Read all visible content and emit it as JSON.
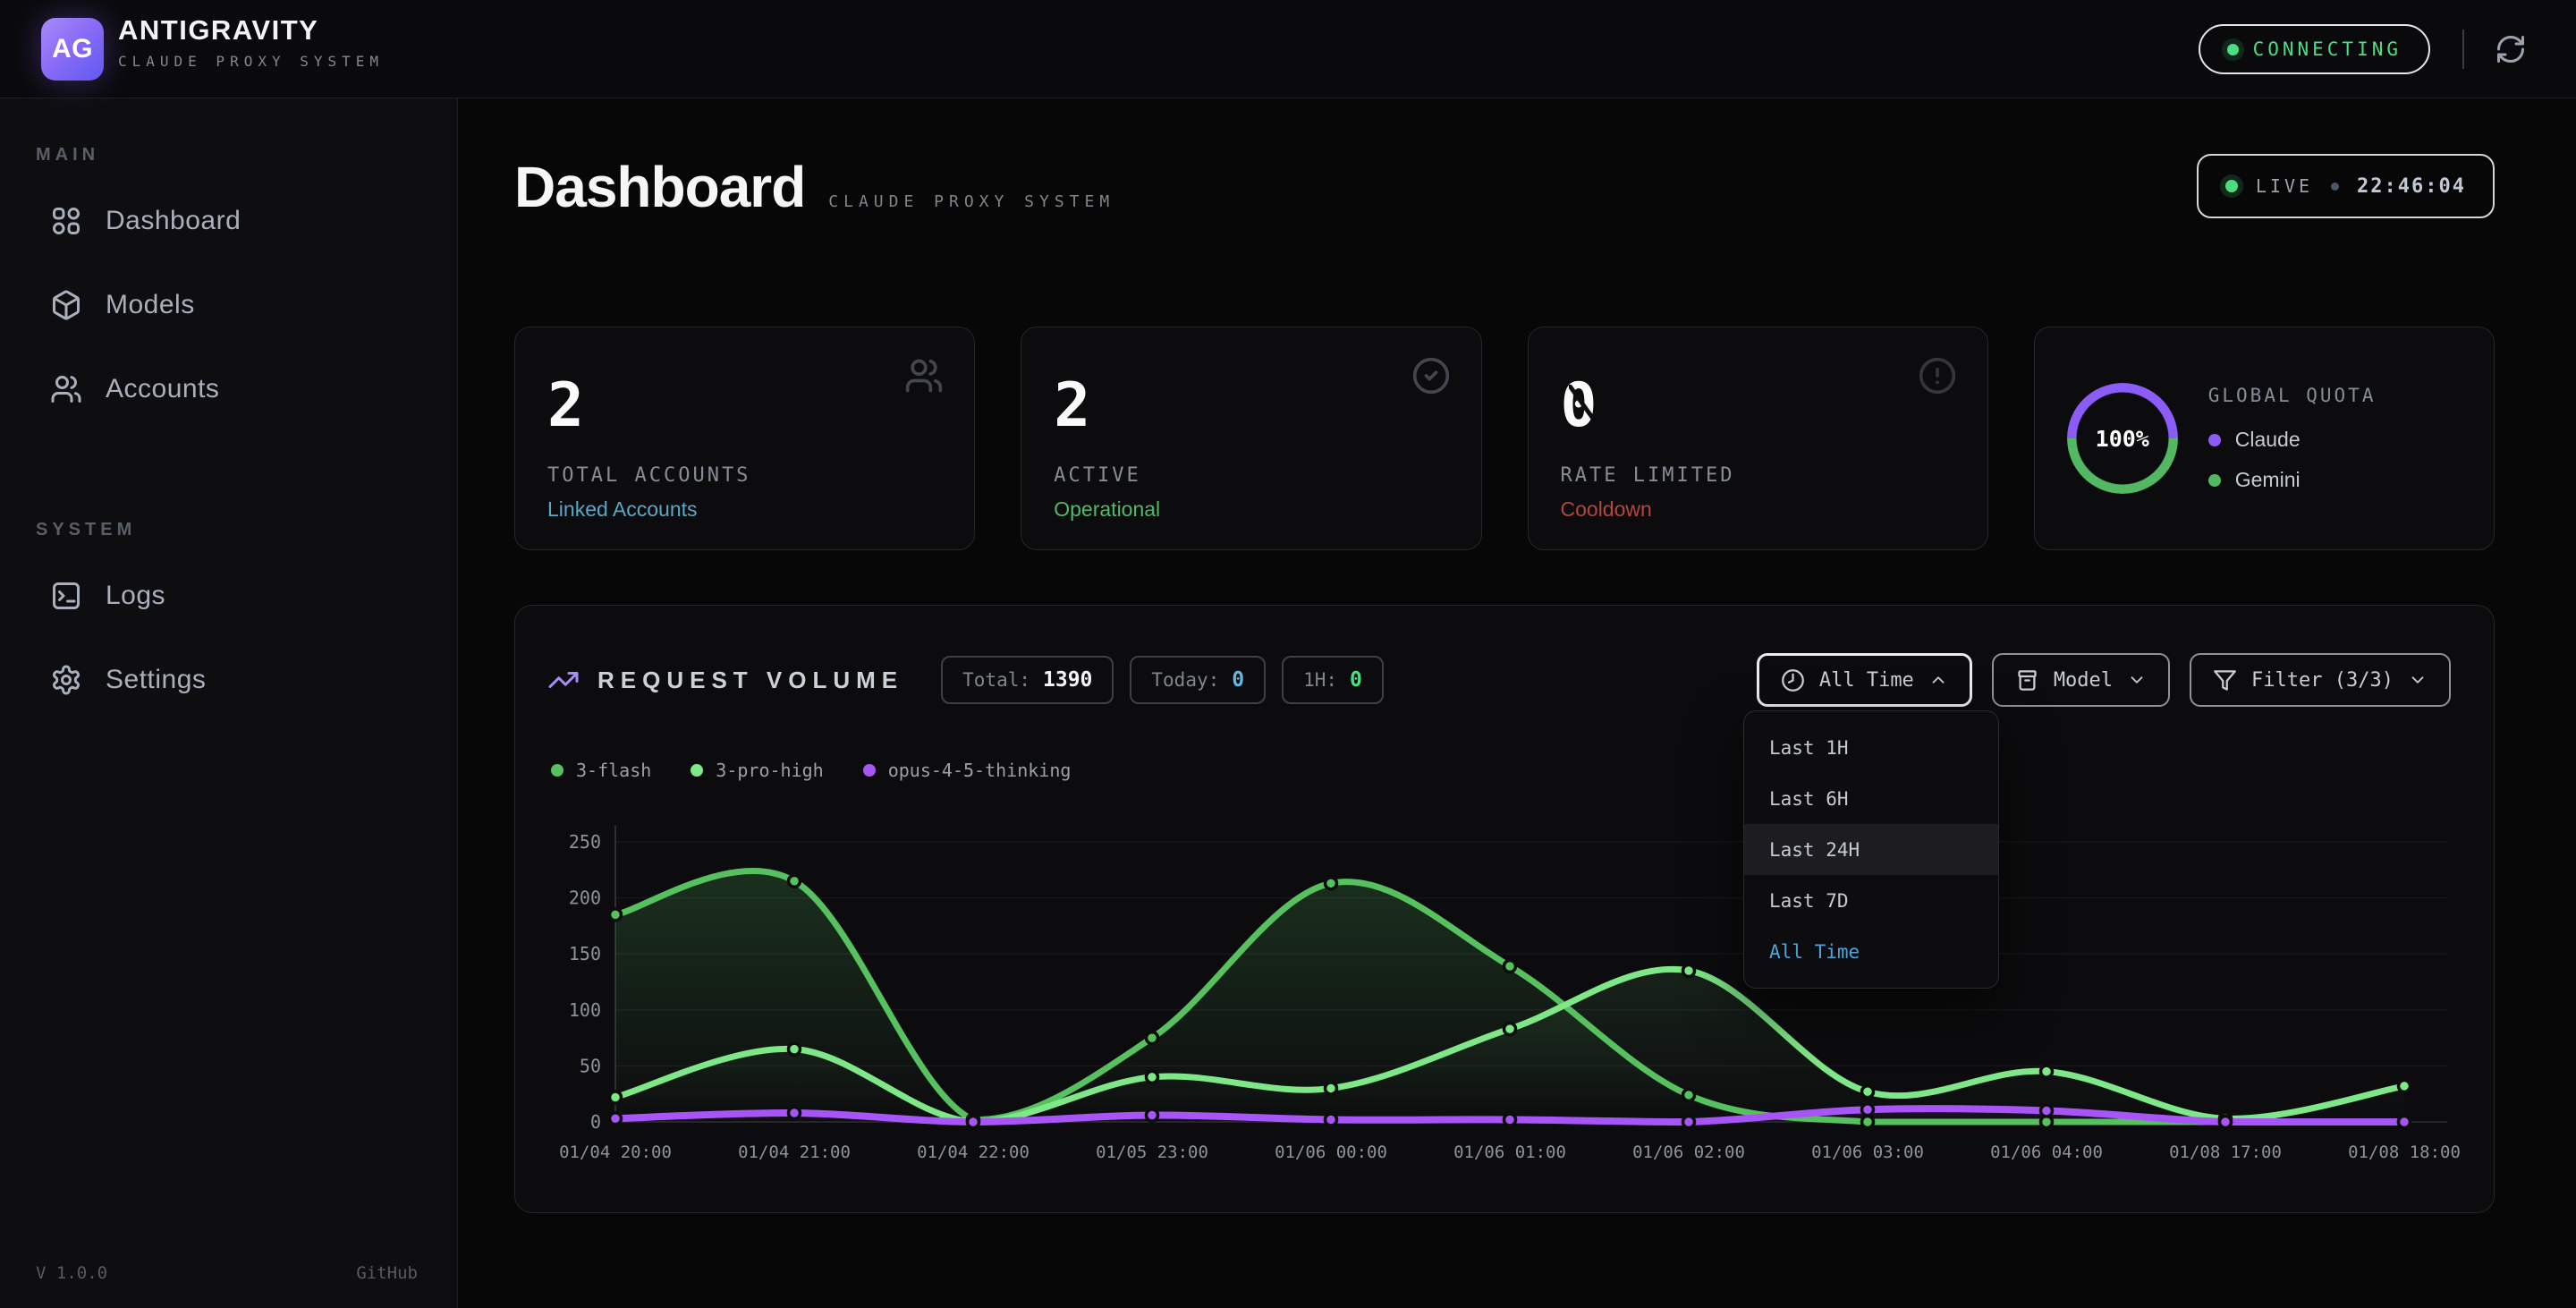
{
  "topbar": {
    "logo_text": "AG",
    "title": "ANTIGRAVITY",
    "subtitle": "CLAUDE PROXY SYSTEM",
    "status": "CONNECTING",
    "status_color": "#4ade80"
  },
  "sidebar": {
    "sections": [
      {
        "label": "MAIN",
        "items": [
          {
            "label": "Dashboard",
            "icon": "grid-icon"
          },
          {
            "label": "Models",
            "icon": "cube-icon"
          },
          {
            "label": "Accounts",
            "icon": "users-icon"
          }
        ]
      },
      {
        "label": "SYSTEM",
        "items": [
          {
            "label": "Logs",
            "icon": "terminal-icon"
          },
          {
            "label": "Settings",
            "icon": "gear-icon"
          }
        ]
      }
    ],
    "footer": {
      "version": "V 1.0.0",
      "link": "GitHub"
    }
  },
  "header": {
    "title": "Dashboard",
    "subtitle": "CLAUDE PROXY SYSTEM",
    "live_label": "LIVE",
    "clock": "22:46:04"
  },
  "stats": [
    {
      "value": "2",
      "label": "TOTAL ACCOUNTS",
      "sub": "Linked Accounts",
      "sub_color": "#5aa8c7",
      "icon": "users-icon"
    },
    {
      "value": "2",
      "label": "ACTIVE",
      "sub": "Operational",
      "sub_color": "#53b868",
      "icon": "check-circle-icon"
    },
    {
      "value": "0",
      "label": "RATE LIMITED",
      "sub": "Cooldown",
      "sub_color": "#b5453f",
      "icon": "alert-circle-icon"
    }
  ],
  "quota": {
    "label": "GLOBAL QUOTA",
    "percent": "100%",
    "ring_top_color": "#8b5cf6",
    "ring_bottom_color": "#53b862",
    "legend": [
      {
        "name": "Claude",
        "color": "#8b5cf6"
      },
      {
        "name": "Gemini",
        "color": "#53b862"
      }
    ]
  },
  "volume": {
    "title": "REQUEST VOLUME",
    "chips": [
      {
        "label": "Total:",
        "value": "1390",
        "value_color": "#f5f5f7"
      },
      {
        "label": "Today:",
        "value": "0",
        "value_color": "#67b7dd"
      },
      {
        "label": "1H:",
        "value": "0",
        "value_color": "#4ade80"
      }
    ],
    "time_button": "All Time",
    "model_button": "Model",
    "filter_button": "Filter (3/3)",
    "menu": {
      "items": [
        "Last 1H",
        "Last 6H",
        "Last 24H",
        "Last 7D",
        "All Time"
      ],
      "highlighted": "Last 24H",
      "selected": "All Time",
      "selected_color": "#4ba5d9"
    }
  },
  "chart_data": {
    "type": "line",
    "title": "REQUEST VOLUME",
    "x": [
      "01/04 20:00",
      "01/04 21:00",
      "01/04 22:00",
      "01/05 23:00",
      "01/06 00:00",
      "01/06 01:00",
      "01/06 02:00",
      "01/06 03:00",
      "01/06 04:00",
      "01/08 17:00",
      "01/08 18:00"
    ],
    "series": [
      {
        "name": "3-flash",
        "color": "#56c15e",
        "fill_from": "rgba(86,193,94,0.20)",
        "fill_to": "rgba(86,193,94,0)",
        "values": [
          185,
          215,
          2,
          75,
          213,
          139,
          24,
          0,
          0,
          0,
          0
        ]
      },
      {
        "name": "3-pro-high",
        "color": "#7ee787",
        "fill_from": "rgba(126,231,135,0.10)",
        "fill_to": "rgba(126,231,135,0)",
        "values": [
          22,
          65,
          0,
          40,
          30,
          83,
          135,
          27,
          45,
          3,
          32
        ]
      },
      {
        "name": "opus-4-5-thinking",
        "color": "#a855f7",
        "fill_from": "rgba(168,85,247,0.14)",
        "fill_to": "rgba(168,85,247,0)",
        "values": [
          3,
          8,
          0,
          6,
          2,
          2,
          0,
          11,
          10,
          0,
          0
        ]
      }
    ],
    "ylim": [
      0,
      250
    ],
    "yticks": [
      0,
      50,
      100,
      150,
      200,
      250
    ],
    "grid": true,
    "legend_position": "top-left"
  }
}
